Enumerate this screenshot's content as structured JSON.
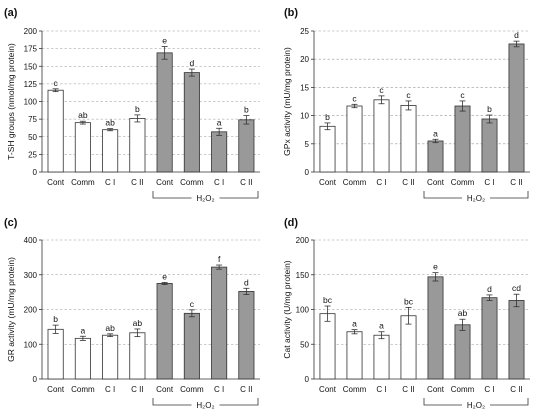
{
  "chart_data": [
    {
      "panel": "(a)",
      "type": "bar",
      "ylabel": "T-SH groups (nmol/mg protein)",
      "ylim": [
        0,
        200
      ],
      "yticks": [
        0,
        25,
        50,
        75,
        100,
        125,
        150,
        175,
        200
      ],
      "categories": [
        "Cont",
        "Comm",
        "C I",
        "C II",
        "Cont",
        "Comm",
        "C I",
        "C II"
      ],
      "values": [
        116,
        70,
        60,
        76,
        169,
        141,
        57,
        74
      ],
      "errors": [
        2,
        2,
        1.5,
        5,
        9,
        5,
        5,
        6
      ],
      "letters": [
        "c",
        "ab",
        "ab",
        "b",
        "e",
        "d",
        "a",
        "b"
      ],
      "fills": [
        "white",
        "white",
        "white",
        "white",
        "gray",
        "gray",
        "gray",
        "gray"
      ],
      "group_label": "H₂O₂",
      "grid": true
    },
    {
      "panel": "(b)",
      "type": "bar",
      "ylabel": "GPx activity (mU/mg protein)",
      "ylim": [
        0,
        25
      ],
      "yticks": [
        0,
        5,
        10,
        15,
        20,
        25
      ],
      "categories": [
        "Cont",
        "Comm",
        "C I",
        "C II",
        "Cont",
        "Comm",
        "C I",
        "C II"
      ],
      "values": [
        8.1,
        11.7,
        12.8,
        11.8,
        5.5,
        11.7,
        9.4,
        22.7
      ],
      "errors": [
        0.6,
        0.3,
        0.7,
        0.8,
        0.3,
        0.9,
        0.7,
        0.5
      ],
      "letters": [
        "b",
        "c",
        "c",
        "c",
        "a",
        "c",
        "b",
        "d"
      ],
      "fills": [
        "white",
        "white",
        "white",
        "white",
        "gray",
        "gray",
        "gray",
        "gray"
      ],
      "group_label": "H₂O₂",
      "grid": true
    },
    {
      "panel": "(c)",
      "type": "bar",
      "ylabel": "GR activity (mU/mg protein)",
      "ylim": [
        0,
        400
      ],
      "yticks": [
        0,
        100,
        200,
        300,
        400
      ],
      "categories": [
        "Cont",
        "Comm",
        "C I",
        "C II",
        "Cont",
        "Comm",
        "C I",
        "C II"
      ],
      "values": [
        143,
        117,
        126,
        133,
        275,
        189,
        322,
        252
      ],
      "errors": [
        12,
        6,
        4,
        11,
        3,
        10,
        6,
        9
      ],
      "letters": [
        "b",
        "a",
        "ab",
        "ab",
        "e",
        "c",
        "f",
        "d"
      ],
      "fills": [
        "white",
        "white",
        "white",
        "white",
        "gray",
        "gray",
        "gray",
        "gray"
      ],
      "group_label": "H₂O₂",
      "grid": true
    },
    {
      "panel": "(d)",
      "type": "bar",
      "ylabel": "Cat activity (U/mg protein)",
      "ylim": [
        0,
        200
      ],
      "yticks": [
        0,
        50,
        100,
        150,
        200
      ],
      "categories": [
        "Cont",
        "Comm",
        "C I",
        "C II",
        "Cont",
        "Comm",
        "C I",
        "C II"
      ],
      "values": [
        94,
        68,
        63,
        91,
        147,
        78,
        117,
        113
      ],
      "errors": [
        11,
        3,
        5,
        12,
        6,
        8,
        4,
        9
      ],
      "letters": [
        "bc",
        "a",
        "a",
        "bc",
        "e",
        "ab",
        "d",
        "cd"
      ],
      "fills": [
        "white",
        "white",
        "white",
        "white",
        "gray",
        "gray",
        "gray",
        "gray"
      ],
      "group_label": "H₂O₂",
      "grid": true
    }
  ],
  "colors": {
    "white_bar": "#ffffff",
    "gray_bar": "#999999",
    "axis": "#333333",
    "grid": "#9a9a9a"
  }
}
